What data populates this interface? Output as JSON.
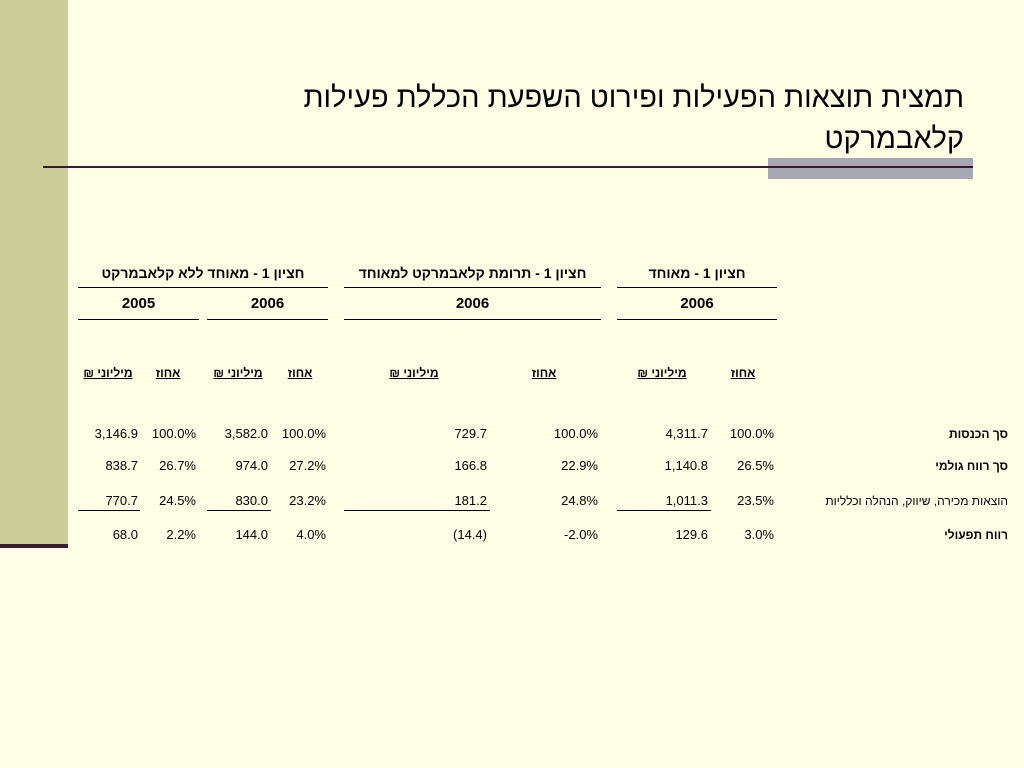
{
  "title": "תמצית תוצאות הפעילות ופירוט השפעת הכללת פעילות קלאבמרקט",
  "column_groups": [
    {
      "label": "חציון 1 - מאוחד ללא קלאבמרקט",
      "years": [
        "2005",
        "2006"
      ]
    },
    {
      "label": "חציון 1 - תרומת קלאבמרקט למאוחד",
      "years": [
        "2006"
      ]
    },
    {
      "label": "חציון 1 - מאוחד",
      "years": [
        "2006"
      ]
    }
  ],
  "subheaders": {
    "millions": "מיליוני ₪",
    "percent": "אחוז"
  },
  "rows": [
    {
      "label": "סך הכנסות",
      "bold": true,
      "values": [
        "3,146.9",
        "100.0%",
        "3,582.0",
        "100.0%",
        "729.7",
        "100.0%",
        "4,311.7",
        "100.0%"
      ]
    },
    {
      "label": "סך רווח גולמי",
      "bold": true,
      "values": [
        "838.7",
        "26.7%",
        "974.0",
        "27.2%",
        "166.8",
        "22.9%",
        "1,140.8",
        "26.5%"
      ]
    },
    {
      "label": "הוצאות מכירה, שיווק, הנהלה וכלליות",
      "bold": false,
      "values": [
        "770.7",
        "24.5%",
        "830.0",
        "23.2%",
        "181.2",
        "24.8%",
        "1,011.3",
        "23.5%"
      ]
    },
    {
      "label": "רווח תפעולי",
      "bold": true,
      "values": [
        "68.0",
        "2.2%",
        "144.0",
        "4.0%",
        "(14.4)",
        "-2.0%",
        "129.6",
        "3.0%"
      ]
    }
  ]
}
